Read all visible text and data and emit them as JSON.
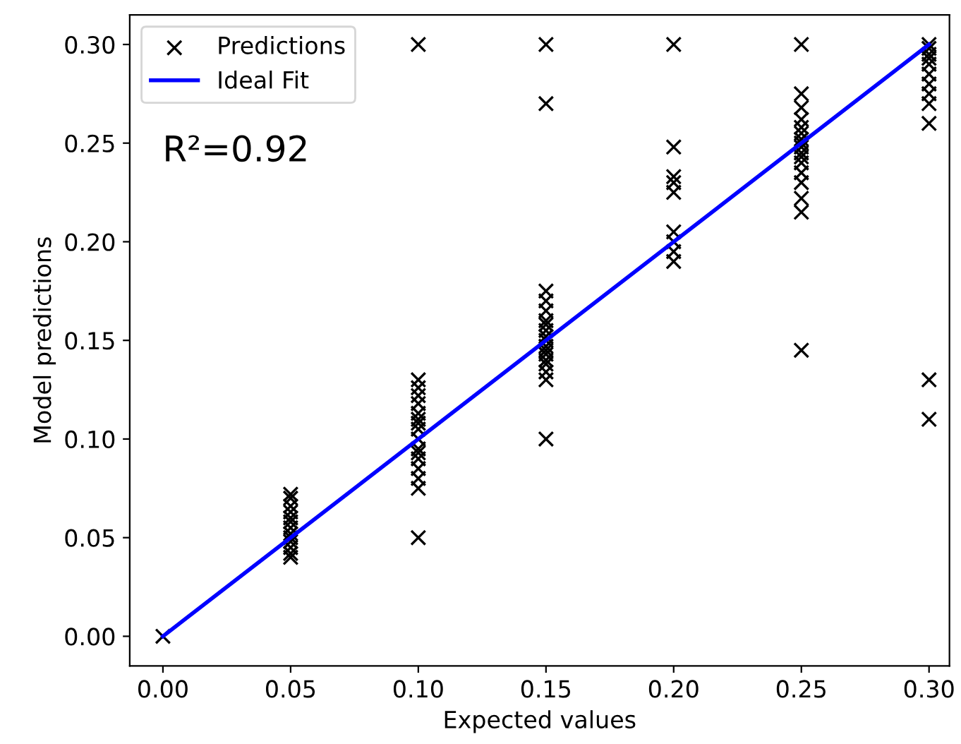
{
  "chart_data": {
    "type": "scatter",
    "xlabel": "Expected values",
    "ylabel": "Model predictions",
    "series": [
      {
        "name": "Predictions",
        "color": "#000000",
        "marker": "cross",
        "x": [
          0.0,
          0.05,
          0.05,
          0.05,
          0.05,
          0.05,
          0.05,
          0.05,
          0.05,
          0.05,
          0.05,
          0.05,
          0.05,
          0.05,
          0.1,
          0.1,
          0.1,
          0.1,
          0.1,
          0.1,
          0.1,
          0.1,
          0.1,
          0.1,
          0.1,
          0.1,
          0.1,
          0.1,
          0.1,
          0.1,
          0.1,
          0.15,
          0.15,
          0.15,
          0.15,
          0.15,
          0.15,
          0.15,
          0.15,
          0.15,
          0.15,
          0.15,
          0.15,
          0.15,
          0.15,
          0.15,
          0.15,
          0.15,
          0.15,
          0.2,
          0.2,
          0.2,
          0.2,
          0.2,
          0.2,
          0.2,
          0.2,
          0.2,
          0.25,
          0.25,
          0.25,
          0.25,
          0.25,
          0.25,
          0.25,
          0.25,
          0.25,
          0.25,
          0.25,
          0.25,
          0.25,
          0.25,
          0.25,
          0.25,
          0.25,
          0.3,
          0.3,
          0.3,
          0.3,
          0.3,
          0.3,
          0.3,
          0.3,
          0.3,
          0.3,
          0.3,
          0.3
        ],
        "values": [
          0.0,
          0.04,
          0.042,
          0.045,
          0.048,
          0.05,
          0.052,
          0.055,
          0.058,
          0.06,
          0.063,
          0.066,
          0.07,
          0.072,
          0.05,
          0.075,
          0.08,
          0.085,
          0.09,
          0.093,
          0.095,
          0.1,
          0.105,
          0.108,
          0.11,
          0.113,
          0.118,
          0.122,
          0.126,
          0.13,
          0.3,
          0.1,
          0.13,
          0.134,
          0.138,
          0.14,
          0.143,
          0.145,
          0.147,
          0.15,
          0.152,
          0.155,
          0.158,
          0.16,
          0.165,
          0.17,
          0.175,
          0.27,
          0.3,
          0.19,
          0.195,
          0.2,
          0.205,
          0.225,
          0.23,
          0.233,
          0.248,
          0.3,
          0.145,
          0.215,
          0.222,
          0.23,
          0.235,
          0.24,
          0.243,
          0.245,
          0.248,
          0.25,
          0.252,
          0.255,
          0.258,
          0.262,
          0.268,
          0.275,
          0.3,
          0.11,
          0.13,
          0.26,
          0.27,
          0.275,
          0.28,
          0.285,
          0.29,
          0.293,
          0.295,
          0.298,
          0.3
        ]
      },
      {
        "name": "Ideal Fit",
        "type": "line",
        "color": "#0000ff",
        "x": [
          0.0,
          0.3
        ],
        "values": [
          0.0,
          0.3
        ]
      }
    ],
    "annotations": [
      "R²=0.92"
    ],
    "xlim": [
      -0.013,
      0.308
    ],
    "ylim": [
      -0.015,
      0.315
    ],
    "xticks": [
      {
        "value": 0.0,
        "label": "0.00"
      },
      {
        "value": 0.05,
        "label": "0.05"
      },
      {
        "value": 0.1,
        "label": "0.10"
      },
      {
        "value": 0.15,
        "label": "0.15"
      },
      {
        "value": 0.2,
        "label": "0.20"
      },
      {
        "value": 0.25,
        "label": "0.25"
      },
      {
        "value": 0.3,
        "label": "0.30"
      }
    ],
    "yticks": [
      {
        "value": 0.0,
        "label": "0.00"
      },
      {
        "value": 0.05,
        "label": "0.05"
      },
      {
        "value": 0.1,
        "label": "0.10"
      },
      {
        "value": 0.15,
        "label": "0.15"
      },
      {
        "value": 0.2,
        "label": "0.20"
      },
      {
        "value": 0.25,
        "label": "0.25"
      },
      {
        "value": 0.3,
        "label": "0.30"
      }
    ],
    "grid": false,
    "legend": "top left"
  }
}
